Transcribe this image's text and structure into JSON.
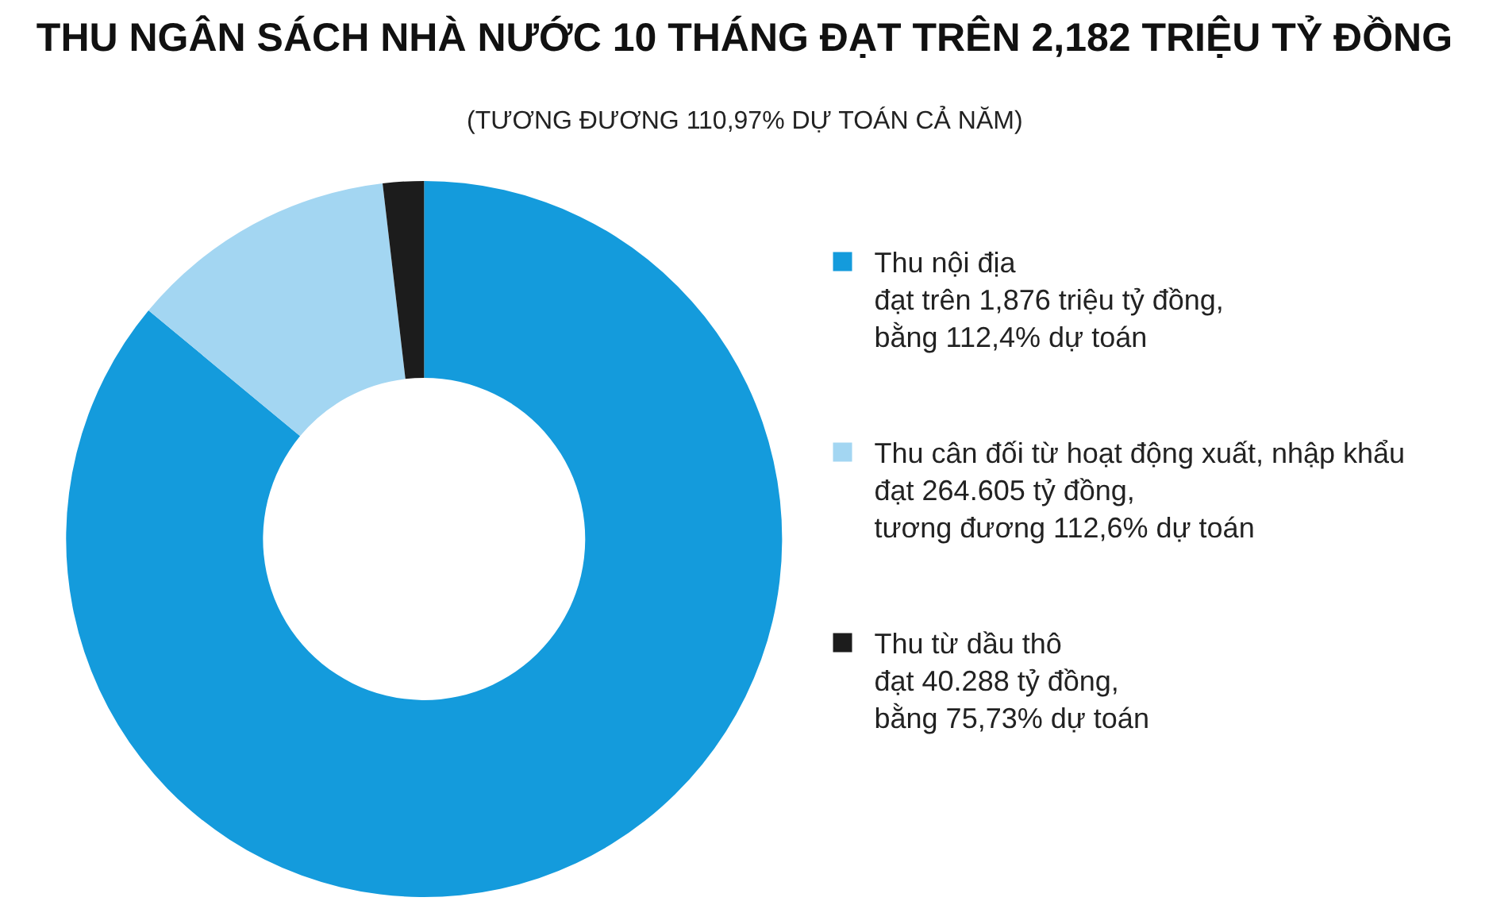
{
  "chart_data": {
    "type": "donut",
    "title": "THU NGÂN SÁCH NHÀ NƯỚC 10 THÁNG ĐẠT TRÊN 2,182 TRIỆU TỶ ĐỒNG",
    "subtitle": "(TƯƠNG ĐƯƠNG 110,97% DỰ TOÁN CẢ NĂM)",
    "categories": [
      "Thu nội địa\nđạt trên 1,876 triệu tỷ đồng,\nbằng 112,4% dự toán",
      "Thu cân đối từ hoạt động xuất, nhập khẩu\nđạt 264.605 tỷ đồng,\ntương đương 112,6% dự toán",
      "Thu từ dầu thô\nđạt 40.288 tỷ đồng,\nbằng 75,73% dự toán"
    ],
    "values": [
      86.02,
      12.13,
      1.85
    ],
    "colors": [
      "#149bdc",
      "#a3d6f2",
      "#1c1c1c"
    ],
    "legend": "right"
  }
}
